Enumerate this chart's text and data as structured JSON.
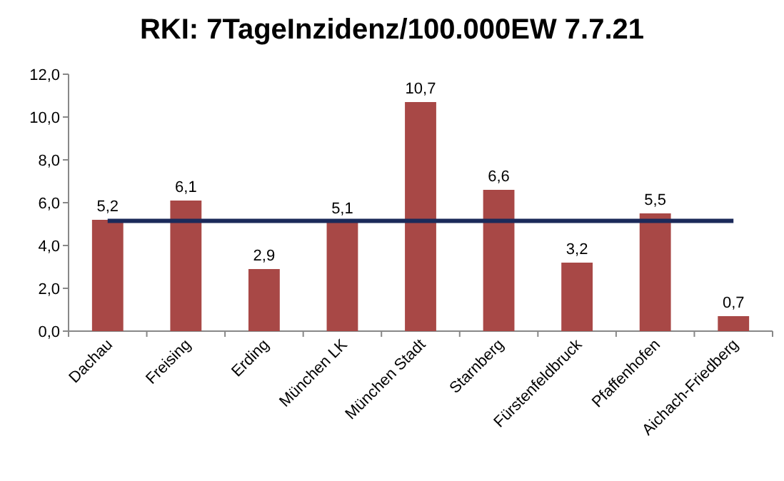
{
  "chart_data": {
    "type": "bar",
    "title": "RKI: 7TageInzidenz/100.000EW 7.7.21",
    "categories": [
      "Dachau",
      "Freising",
      "Erding",
      "München LK",
      "München Stadt",
      "Starnberg",
      "Fürstenfeldbruck",
      "Pfaffenhofen",
      "Aichach-Friedberg"
    ],
    "values": [
      5.2,
      6.1,
      2.9,
      5.1,
      10.7,
      6.6,
      3.2,
      5.5,
      0.7
    ],
    "value_labels": [
      "5,2",
      "6,1",
      "2,9",
      "5,1",
      "10,7",
      "6,6",
      "3,2",
      "5,5",
      "0,7"
    ],
    "color": "#a84846",
    "ylim": [
      0,
      12
    ],
    "yticks": [
      {
        "value": 0,
        "label": "0,0"
      },
      {
        "value": 2,
        "label": "2,0"
      },
      {
        "value": 4,
        "label": "4,0"
      },
      {
        "value": 6,
        "label": "6,0"
      },
      {
        "value": 8,
        "label": "8,0"
      },
      {
        "value": 10,
        "label": "10,0"
      },
      {
        "value": 12,
        "label": "12,0"
      }
    ],
    "ref_lines": [
      {
        "axis": "y",
        "value": 5.15,
        "color": "#1b2a5a"
      }
    ],
    "grid": false
  }
}
